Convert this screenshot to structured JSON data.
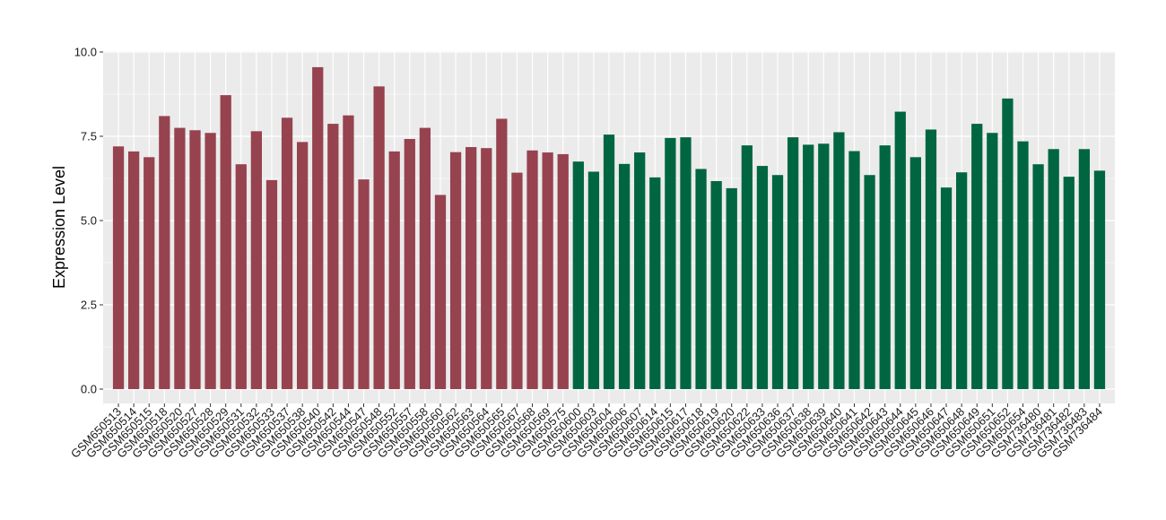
{
  "chart_data": {
    "type": "bar",
    "title": "",
    "xlabel": "",
    "ylabel": "Expression Level",
    "ylim": [
      0,
      10
    ],
    "yticks": [
      "0.0",
      "2.5",
      "5.0",
      "7.5",
      "10.0"
    ],
    "ytick_values": [
      0,
      2.5,
      5,
      7.5,
      10
    ],
    "grid": true,
    "legend": "none",
    "categories": [
      "GSM650513",
      "GSM650514",
      "GSM650515",
      "GSM650518",
      "GSM650520",
      "GSM650527",
      "GSM650528",
      "GSM650529",
      "GSM650531",
      "GSM650532",
      "GSM650533",
      "GSM650537",
      "GSM650538",
      "GSM650540",
      "GSM650542",
      "GSM650544",
      "GSM650547",
      "GSM650548",
      "GSM650552",
      "GSM650557",
      "GSM650558",
      "GSM650560",
      "GSM650562",
      "GSM650563",
      "GSM650564",
      "GSM650565",
      "GSM650567",
      "GSM650568",
      "GSM650569",
      "GSM650575",
      "GSM650600",
      "GSM650603",
      "GSM650604",
      "GSM650606",
      "GSM650607",
      "GSM650614",
      "GSM650615",
      "GSM650617",
      "GSM650618",
      "GSM650619",
      "GSM650620",
      "GSM650622",
      "GSM650633",
      "GSM650636",
      "GSM650637",
      "GSM650638",
      "GSM650639",
      "GSM650640",
      "GSM650641",
      "GSM650642",
      "GSM650643",
      "GSM650644",
      "GSM650645",
      "GSM650646",
      "GSM650647",
      "GSM650648",
      "GSM650649",
      "GSM650651",
      "GSM650652",
      "GSM650654",
      "GSM736480",
      "GSM736481",
      "GSM736482",
      "GSM736483",
      "GSM736484"
    ],
    "values": [
      7.2,
      7.05,
      6.88,
      8.1,
      7.75,
      7.68,
      7.6,
      8.72,
      6.67,
      7.65,
      6.2,
      8.05,
      7.33,
      9.55,
      7.87,
      8.12,
      6.22,
      8.98,
      7.05,
      7.42,
      7.75,
      5.76,
      7.03,
      7.18,
      7.15,
      8.02,
      6.42,
      7.08,
      7.02,
      6.97,
      6.75,
      6.45,
      7.55,
      6.68,
      7.02,
      6.28,
      7.45,
      7.47,
      6.53,
      6.17,
      5.96,
      7.23,
      6.62,
      6.35,
      7.47,
      7.25,
      7.28,
      7.62,
      7.06,
      6.35,
      7.23,
      8.23,
      6.88,
      7.7,
      5.98,
      6.43,
      7.87,
      7.6,
      8.62,
      7.35,
      6.67,
      7.12,
      6.3,
      7.12,
      6.48
    ],
    "group_split_index": 30,
    "colors": {
      "group1": "#96434f",
      "group2": "#006641",
      "panel": "#ebebeb",
      "grid": "#ffffff",
      "tick": "#333333"
    }
  }
}
